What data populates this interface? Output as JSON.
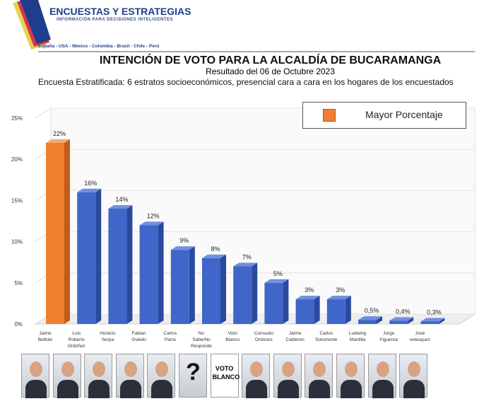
{
  "header": {
    "brand": "ENCUESTAS Y ESTRATEGIAS",
    "tagline": "INFORMACIÓN PARA DECISIONES INTELIGENTES",
    "countries": "España - USA - México - Colombia - Brasil - Chile - Perú",
    "title": "INTENCIÓN DE VOTO PARA LA ALCALDÍA DE BUCARAMANGA",
    "subtitle": "Resultado del 06 de Octubre 2023",
    "method_label": "Encuesta Estratificada:",
    "method_text": " 6 estratos socioeconómicos, presencial cara a cara en los hogares de los encuestados"
  },
  "colors": {
    "highlight": "#f07f2f",
    "bars": "#3f66c8",
    "brand": "#1f3d8c"
  },
  "chart_data": {
    "type": "bar",
    "legend": {
      "label": "Mayor Porcentaje",
      "placement": "top-right"
    },
    "ylim": [
      0,
      25
    ],
    "yticks": [
      "0%",
      "5%",
      "10%",
      "15%",
      "20%",
      "25%"
    ],
    "categories": [
      [
        "Jaime",
        "Beltrán"
      ],
      [
        "Luis",
        "Roberto",
        "Ordóñez"
      ],
      [
        "Horacio",
        "Serpa"
      ],
      [
        "Fabian",
        "Oviedo"
      ],
      [
        "Carlos",
        "Parra"
      ],
      [
        "No",
        "Sabe/No",
        "Responde"
      ],
      [
        "Voto",
        "Blanco"
      ],
      [
        "Consuelo",
        "Ordónez"
      ],
      [
        "Jaime",
        "Calderón"
      ],
      [
        "Carlos",
        "Sotomonte"
      ],
      [
        "Ludwing",
        "Mantilla"
      ],
      [
        "Jorge",
        "Figueroa"
      ],
      [
        "José",
        "velasquez"
      ]
    ],
    "values": [
      22,
      16,
      14,
      12,
      9,
      8,
      7,
      5,
      3,
      3,
      0.5,
      0.4,
      0.3
    ],
    "labels": [
      "22%",
      "16%",
      "14%",
      "12%",
      "9%",
      "8%",
      "7%",
      "5%",
      "3%",
      "3%",
      "0,5%",
      "0,4%",
      "0,3%"
    ],
    "highlight_index": 0,
    "grid": true
  },
  "photos": [
    "Jaime Beltrán",
    "Luis Roberto Ordóñez",
    "Horacio Serpa",
    "Fabian Oviedo",
    "Carlos Parra",
    "No Sabe/No Responde",
    "Voto Blanco",
    "Consuelo Ordónez",
    "Jaime Calderón",
    "Carlos Sotomonte",
    "Ludwing Mantilla",
    "Jorge Figueroa",
    "José velasquez"
  ],
  "voto_blanco_logo": "VOTO EN BLANCO"
}
